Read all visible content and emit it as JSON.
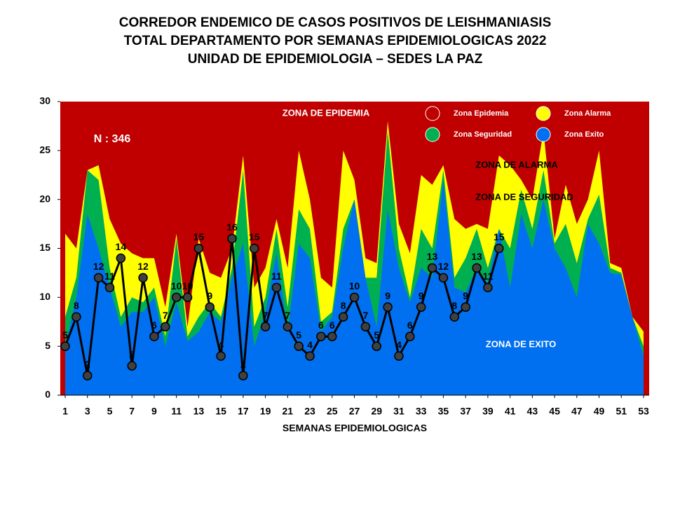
{
  "chart_data": {
    "type": "area",
    "title": [
      "CORREDOR ENDEMICO DE CASOS POSITIVOS DE LEISHMANIASIS",
      "TOTAL DEPARTAMENTO POR SEMANAS EPIDEMIOLOGICAS 2022",
      "UNIDAD DE EPIDEMIOLOGIA – SEDES LA PAZ"
    ],
    "x_label": "SEMANAS EPIDEMIOLOGICAS",
    "annotations": [
      "ZONA DE EPIDEMIA",
      "ZONA DE ALARMA",
      "ZONA DE  SEGURIDAD",
      "ZONA DE  EXITO",
      "N : 346"
    ],
    "x": [
      1,
      2,
      3,
      4,
      5,
      6,
      7,
      8,
      9,
      10,
      11,
      12,
      13,
      14,
      15,
      16,
      17,
      18,
      19,
      20,
      21,
      22,
      23,
      24,
      25,
      26,
      27,
      28,
      29,
      30,
      31,
      32,
      33,
      34,
      35,
      36,
      37,
      38,
      39,
      40,
      41,
      42,
      43,
      44,
      45,
      46,
      47,
      48,
      49,
      50,
      51,
      52,
      53
    ],
    "xlim": [
      1,
      53
    ],
    "xticks": [
      1,
      3,
      5,
      7,
      9,
      11,
      13,
      15,
      17,
      19,
      21,
      23,
      25,
      27,
      29,
      31,
      33,
      35,
      37,
      39,
      41,
      43,
      45,
      47,
      49,
      51,
      53
    ],
    "ylim": [
      0,
      30
    ],
    "yticks": [
      0,
      5,
      10,
      15,
      20,
      25,
      30
    ],
    "epidemic_zone": {
      "name": "Zona Epidemia",
      "color": "#c00000"
    },
    "series": [
      {
        "name": "Zona Alarma",
        "color": "#ffff00",
        "values": [
          16.5,
          15,
          23,
          23.5,
          18,
          15.5,
          14.5,
          14,
          14,
          9,
          16.5,
          7,
          16,
          12.5,
          12,
          15,
          24.5,
          11,
          13,
          18,
          13,
          25,
          20,
          12,
          11,
          25,
          22,
          14,
          13.5,
          28,
          17.5,
          14.5,
          22.5,
          21.5,
          23.5,
          18,
          17,
          17.5,
          17,
          24.5,
          23.5,
          22,
          20,
          27,
          16,
          21.5,
          17.5,
          20,
          25,
          13.5,
          13,
          8,
          6.5
        ]
      },
      {
        "name": "Zona Seguridad",
        "color": "#00b050",
        "values": [
          8,
          12,
          23,
          22,
          13,
          8,
          10,
          9.5,
          11,
          6,
          16,
          6,
          8,
          9.5,
          8,
          13,
          23,
          7,
          10,
          17,
          9,
          19,
          17,
          7.5,
          8.5,
          17,
          20,
          12,
          12,
          27,
          15,
          10,
          17,
          15,
          23,
          12,
          14,
          17,
          13,
          17,
          15,
          21,
          17,
          23,
          15.5,
          17.5,
          13.5,
          18,
          20.5,
          13,
          12.5,
          8,
          5
        ]
      },
      {
        "name": "Zona Exito",
        "color": "#0070f0",
        "values": [
          5,
          10,
          18.5,
          15,
          11,
          7,
          8.5,
          8.5,
          10,
          5,
          9.5,
          5.5,
          6.5,
          8.5,
          7.5,
          12,
          15.5,
          5,
          8.5,
          14.5,
          6.5,
          15.5,
          14,
          6.5,
          8,
          15,
          20,
          12,
          7,
          19,
          13,
          9.5,
          13,
          12,
          22,
          11,
          10.5,
          13,
          11.5,
          17,
          11,
          18.5,
          15,
          20,
          15,
          13,
          10,
          17.5,
          15.5,
          12.5,
          12.3,
          8,
          4
        ]
      }
    ],
    "cases": {
      "color": "#000000",
      "marker_color": "#404040",
      "values": [
        5,
        8,
        2,
        12,
        11,
        14,
        3,
        12,
        6,
        7,
        10,
        10,
        15,
        9,
        4,
        16,
        2,
        15,
        7,
        11,
        7,
        5,
        4,
        6,
        6,
        8,
        10,
        7,
        5,
        9,
        4,
        6,
        9,
        13,
        12,
        8,
        9,
        13,
        11,
        15
      ]
    }
  }
}
